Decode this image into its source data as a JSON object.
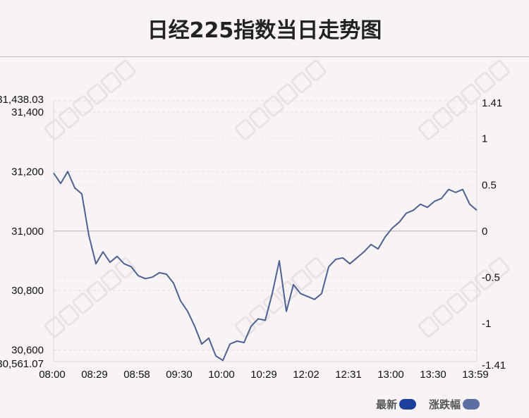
{
  "chart_data": {
    "type": "line",
    "title": "日经225指数当日走势图",
    "x_ticks": [
      "08:00",
      "08:29",
      "08:58",
      "09:30",
      "10:00",
      "10:29",
      "12:02",
      "12:31",
      "13:00",
      "13:30",
      "13:59"
    ],
    "y_left_ticks": [
      "31,400",
      "31,200",
      "31,000",
      "30,800",
      "30,600"
    ],
    "y_left_top": "31,438.03",
    "y_left_bottom": "30,561.07",
    "y_right_ticks": [
      "1.41",
      "1",
      "0.5",
      "0",
      "-0.5",
      "-1",
      "-1.41"
    ],
    "ylim": [
      30561.07,
      31438.03
    ],
    "baseline": 31000,
    "series": [
      {
        "values": [
          31195,
          31160,
          31200,
          31145,
          31125,
          30985,
          30890,
          30930,
          30895,
          30915,
          30890,
          30880,
          30850,
          30840,
          30845,
          30860,
          30855,
          30825,
          30765,
          30730,
          30680,
          30620,
          30640,
          30580,
          30565,
          30620,
          30630,
          30625,
          30680,
          30705,
          30700,
          30790,
          30900,
          30730,
          30820,
          30790,
          30780,
          30770,
          30790,
          30880,
          30905,
          30910,
          30890,
          30910,
          30930,
          30955,
          30940,
          30980,
          31010,
          31030,
          31060,
          31070,
          31090,
          31080,
          31100,
          31110,
          31140,
          31130,
          31140,
          31090,
          31070
        ]
      }
    ],
    "legend": [
      {
        "label": "最新",
        "color": "#1b3f9a"
      },
      {
        "label": "涨跌幅",
        "color": "#5a6f9f"
      }
    ],
    "line_color": "#4e6190",
    "grid": true,
    "legend_position": "bottom-right"
  }
}
